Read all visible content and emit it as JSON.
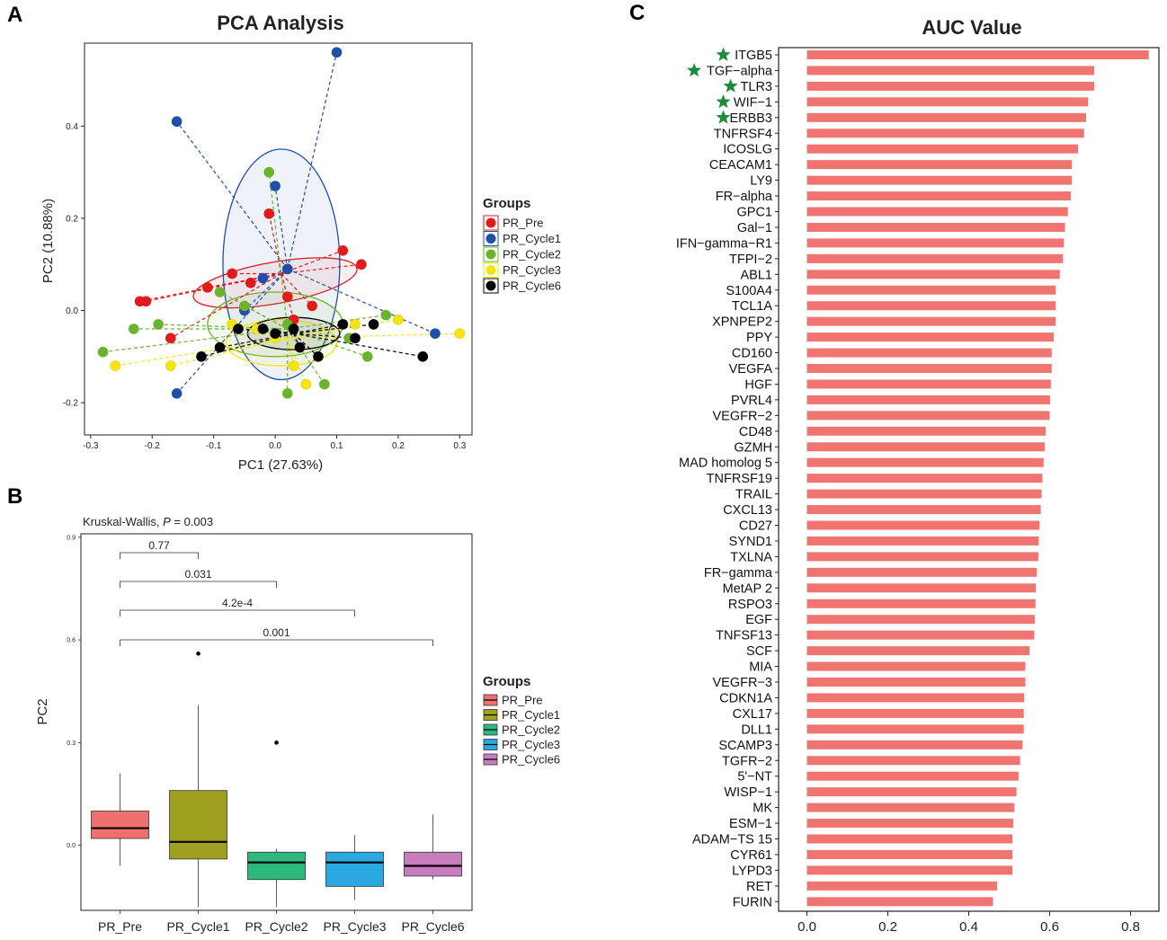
{
  "panels": {
    "a_letter": "A",
    "b_letter": "B",
    "c_letter": "C"
  },
  "chart_data": [
    {
      "id": "pca",
      "type": "scatter",
      "title": "PCA Analysis",
      "xlabel": "PC1 (27.63%)",
      "ylabel": "PC2 (10.88%)",
      "xlim": [
        -0.31,
        0.32
      ],
      "ylim": [
        -0.27,
        0.58
      ],
      "xticks": [
        "-0.3",
        "-0.2",
        "-0.1",
        "0.0",
        "0.1",
        "0.2",
        "0.3"
      ],
      "xtick_values": [
        -0.3,
        -0.2,
        -0.1,
        0.0,
        0.1,
        0.2,
        0.3
      ],
      "yticks": [
        "-0.2",
        "0.0",
        "0.2",
        "0.4"
      ],
      "ytick_values": [
        -0.2,
        0.0,
        0.2,
        0.4
      ],
      "legend_title": "Groups",
      "series": [
        {
          "name": "PR_Pre",
          "color": "#e31a1c",
          "centroid": [
            0.01,
            0.08
          ],
          "ellipse": {
            "cx": 0.0,
            "cy": 0.06,
            "rx": 0.135,
            "ry": 0.045,
            "angle": 10
          },
          "points": [
            [
              -0.22,
              0.02
            ],
            [
              -0.21,
              0.02
            ],
            [
              -0.11,
              0.05
            ],
            [
              -0.07,
              0.08
            ],
            [
              -0.04,
              0.06
            ],
            [
              -0.01,
              0.21
            ],
            [
              0.02,
              0.03
            ],
            [
              0.03,
              -0.02
            ],
            [
              0.06,
              0.01
            ],
            [
              0.11,
              0.13
            ],
            [
              0.14,
              0.1
            ],
            [
              -0.17,
              -0.06
            ],
            [
              0.02,
              0.09
            ]
          ]
        },
        {
          "name": "PR_Cycle1",
          "color": "#1f4fa8",
          "centroid": [
            0.02,
            0.09
          ],
          "ellipse": {
            "cx": 0.01,
            "cy": 0.1,
            "rx": 0.095,
            "ry": 0.25,
            "angle": 0
          },
          "points": [
            [
              0.1,
              0.56
            ],
            [
              -0.16,
              0.41
            ],
            [
              0.0,
              0.27
            ],
            [
              -0.16,
              -0.18
            ],
            [
              0.26,
              -0.05
            ],
            [
              0.02,
              0.09
            ],
            [
              -0.05,
              0.0
            ],
            [
              -0.02,
              0.07
            ]
          ]
        },
        {
          "name": "PR_Cycle2",
          "color": "#6ab42d",
          "centroid": [
            0.02,
            -0.04
          ],
          "ellipse": {
            "cx": 0.0,
            "cy": -0.03,
            "rx": 0.11,
            "ry": 0.07,
            "angle": 0
          },
          "points": [
            [
              -0.28,
              -0.09
            ],
            [
              -0.23,
              -0.04
            ],
            [
              -0.19,
              -0.03
            ],
            [
              -0.01,
              0.3
            ],
            [
              0.02,
              -0.18
            ],
            [
              0.08,
              -0.16
            ],
            [
              0.12,
              -0.06
            ],
            [
              0.15,
              -0.1
            ],
            [
              0.18,
              -0.01
            ],
            [
              -0.09,
              0.04
            ],
            [
              -0.05,
              0.01
            ],
            [
              0.02,
              -0.03
            ]
          ]
        },
        {
          "name": "PR_Cycle3",
          "color": "#f5e50f",
          "centroid": [
            0.02,
            -0.06
          ],
          "ellipse": {
            "cx": 0.01,
            "cy": -0.07,
            "rx": 0.09,
            "ry": 0.05,
            "angle": 0
          },
          "points": [
            [
              -0.26,
              -0.12
            ],
            [
              -0.17,
              -0.12
            ],
            [
              -0.07,
              -0.03
            ],
            [
              0.03,
              -0.12
            ],
            [
              0.05,
              -0.16
            ],
            [
              0.13,
              -0.03
            ],
            [
              0.2,
              -0.02
            ],
            [
              0.3,
              -0.05
            ],
            [
              0.0,
              -0.06
            ],
            [
              -0.03,
              -0.04
            ]
          ]
        },
        {
          "name": "PR_Cycle6",
          "color": "#000000",
          "centroid": [
            0.03,
            -0.05
          ],
          "ellipse": {
            "cx": 0.03,
            "cy": -0.05,
            "rx": 0.075,
            "ry": 0.035,
            "angle": 0
          },
          "points": [
            [
              -0.12,
              -0.1
            ],
            [
              -0.09,
              -0.08
            ],
            [
              -0.06,
              -0.04
            ],
            [
              0.04,
              -0.08
            ],
            [
              0.07,
              -0.1
            ],
            [
              0.11,
              -0.03
            ],
            [
              0.13,
              -0.06
            ],
            [
              0.16,
              -0.03
            ],
            [
              0.24,
              -0.1
            ],
            [
              0.03,
              -0.04
            ],
            [
              0.0,
              -0.05
            ],
            [
              -0.02,
              -0.04
            ]
          ]
        }
      ]
    },
    {
      "id": "boxplot",
      "type": "box",
      "subtitle_prefix": "Kruskal-Wallis, ",
      "subtitle_p": "P",
      "subtitle_suffix": " = 0.003",
      "ylabel": "PC2",
      "ylim": [
        -0.19,
        0.91
      ],
      "yticks": [
        "0.0",
        "0.3",
        "0.6",
        "0.9"
      ],
      "ytick_values": [
        0.0,
        0.3,
        0.6,
        0.9
      ],
      "categories": [
        "PR_Pre",
        "PR_Cycle1",
        "PR_Cycle2",
        "PR_Cycle3",
        "PR_Cycle6"
      ],
      "colors": [
        "#f07070",
        "#a0a020",
        "#2db87d",
        "#2aa8e0",
        "#c77dbd"
      ],
      "legend_title": "Groups",
      "boxes": [
        {
          "q1": 0.02,
          "median": 0.05,
          "q3": 0.1,
          "whisker_low": -0.06,
          "whisker_high": 0.21,
          "outliers": []
        },
        {
          "q1": -0.04,
          "median": 0.01,
          "q3": 0.16,
          "whisker_low": -0.18,
          "whisker_high": 0.41,
          "outliers": [
            0.56
          ]
        },
        {
          "q1": -0.1,
          "median": -0.05,
          "q3": -0.02,
          "whisker_low": -0.18,
          "whisker_high": -0.01,
          "outliers": [
            0.3
          ]
        },
        {
          "q1": -0.12,
          "median": -0.05,
          "q3": -0.02,
          "whisker_low": -0.16,
          "whisker_high": 0.03,
          "outliers": []
        },
        {
          "q1": -0.09,
          "median": -0.06,
          "q3": -0.02,
          "whisker_low": -0.1,
          "whisker_high": 0.09,
          "outliers": []
        }
      ],
      "comparisons": [
        {
          "from": 0,
          "to": 1,
          "label": "0.77"
        },
        {
          "from": 0,
          "to": 2,
          "label": "0.031"
        },
        {
          "from": 0,
          "to": 3,
          "label": "4.2e-4"
        },
        {
          "from": 0,
          "to": 4,
          "label": "0.001"
        }
      ]
    },
    {
      "id": "auc",
      "type": "bar",
      "orientation": "horizontal",
      "title": "AUC Value",
      "xlim": [
        -0.07,
        0.87
      ],
      "xticks": [
        "0.0",
        "0.2",
        "0.4",
        "0.6",
        "0.8"
      ],
      "xtick_values": [
        0.0,
        0.2,
        0.4,
        0.6,
        0.8
      ],
      "bar_color": "#f07470",
      "star_color": "#1e8b3a",
      "categories": [
        "ITGB5",
        "TGF−alpha",
        "TLR3",
        "WIF−1",
        "ERBB3",
        "TNFRSF4",
        "ICOSLG",
        "CEACAM1",
        "LY9",
        "FR−alpha",
        "GPC1",
        "Gal−1",
        "IFN−gamma−R1",
        "TFPI−2",
        "ABL1",
        "S100A4",
        "TCL1A",
        "XPNPEP2",
        "PPY",
        "CD160",
        "VEGFA",
        "HGF",
        "PVRL4",
        "VEGFR−2",
        "CD48",
        "GZMH",
        "MAD homolog 5",
        "TNFRSF19",
        "TRAIL",
        "CXCL13",
        "CD27",
        "SYND1",
        "TXLNA",
        "FR−gamma",
        "MetAP 2",
        "RSPO3",
        "EGF",
        "TNFSF13",
        "SCF",
        "MIA",
        "VEGFR−3",
        "CDKN1A",
        "CXL17",
        "DLL1",
        "SCAMP3",
        "TGFR−2",
        "5'−NT",
        "WISP−1",
        "MK",
        "ESM−1",
        "ADAM−TS 15",
        "CYR61",
        "LYPD3",
        "RET",
        "FURIN"
      ],
      "values": [
        0.845,
        0.71,
        0.71,
        0.695,
        0.69,
        0.685,
        0.67,
        0.655,
        0.655,
        0.652,
        0.645,
        0.638,
        0.635,
        0.633,
        0.625,
        0.615,
        0.615,
        0.615,
        0.61,
        0.605,
        0.605,
        0.603,
        0.601,
        0.6,
        0.59,
        0.588,
        0.585,
        0.582,
        0.58,
        0.578,
        0.575,
        0.573,
        0.572,
        0.568,
        0.566,
        0.565,
        0.563,
        0.562,
        0.55,
        0.54,
        0.54,
        0.537,
        0.536,
        0.536,
        0.533,
        0.527,
        0.523,
        0.518,
        0.513,
        0.51,
        0.508,
        0.508,
        0.508,
        0.47,
        0.46
      ],
      "starred": [
        0,
        1,
        2,
        3,
        4
      ]
    }
  ]
}
